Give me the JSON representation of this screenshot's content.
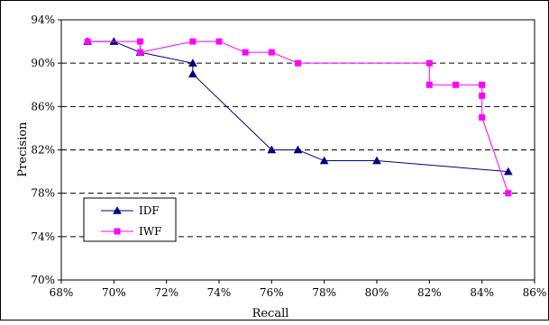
{
  "chart_data": {
    "type": "line",
    "xlabel": "Recall",
    "ylabel": "Precision",
    "xlim": [
      68,
      86
    ],
    "ylim": [
      70,
      94
    ],
    "x_ticks": [
      {
        "value": 68,
        "label": "68%"
      },
      {
        "value": 70,
        "label": "70%"
      },
      {
        "value": 72,
        "label": "72%"
      },
      {
        "value": 74,
        "label": "74%"
      },
      {
        "value": 76,
        "label": "76%"
      },
      {
        "value": 78,
        "label": "78%"
      },
      {
        "value": 80,
        "label": "80%"
      },
      {
        "value": 82,
        "label": "82%"
      },
      {
        "value": 84,
        "label": "84%"
      },
      {
        "value": 86,
        "label": "86%"
      }
    ],
    "y_ticks": [
      {
        "value": 70,
        "label": "70%"
      },
      {
        "value": 74,
        "label": "74%"
      },
      {
        "value": 78,
        "label": "78%"
      },
      {
        "value": 82,
        "label": "82%"
      },
      {
        "value": 86,
        "label": "86%"
      },
      {
        "value": 90,
        "label": "90%"
      },
      {
        "value": 94,
        "label": "94%"
      }
    ],
    "grid": "horizontal dashed",
    "legend_position": "lower-left",
    "series": [
      {
        "name": "IDF",
        "color": "#000080",
        "marker": "triangle",
        "points": [
          {
            "x": 69,
            "y": 92
          },
          {
            "x": 70,
            "y": 92
          },
          {
            "x": 71,
            "y": 91
          },
          {
            "x": 73,
            "y": 90
          },
          {
            "x": 73,
            "y": 89
          },
          {
            "x": 76,
            "y": 82
          },
          {
            "x": 77,
            "y": 82
          },
          {
            "x": 78,
            "y": 81
          },
          {
            "x": 80,
            "y": 81
          },
          {
            "x": 85,
            "y": 80
          }
        ]
      },
      {
        "name": "IWF",
        "color": "#ff00ff",
        "marker": "square",
        "points": [
          {
            "x": 69,
            "y": 92
          },
          {
            "x": 71,
            "y": 92
          },
          {
            "x": 71,
            "y": 91
          },
          {
            "x": 73,
            "y": 92
          },
          {
            "x": 74,
            "y": 92
          },
          {
            "x": 75,
            "y": 91
          },
          {
            "x": 76,
            "y": 91
          },
          {
            "x": 77,
            "y": 90
          },
          {
            "x": 82,
            "y": 90
          },
          {
            "x": 82,
            "y": 88
          },
          {
            "x": 83,
            "y": 88
          },
          {
            "x": 84,
            "y": 88
          },
          {
            "x": 84,
            "y": 87
          },
          {
            "x": 84,
            "y": 85
          },
          {
            "x": 85,
            "y": 78
          }
        ]
      }
    ]
  }
}
